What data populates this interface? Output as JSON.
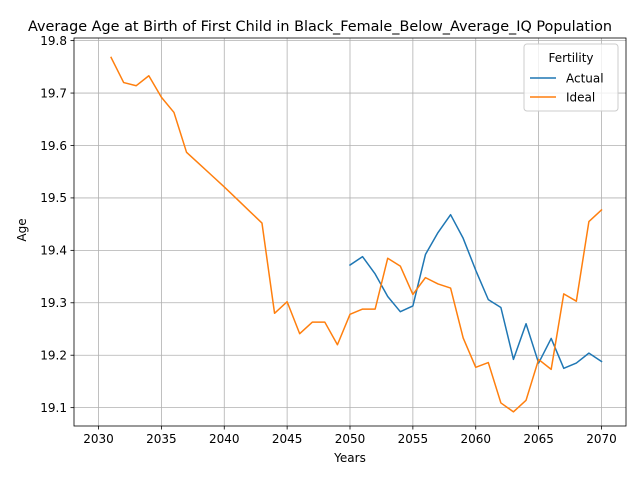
{
  "chart_data": {
    "type": "line",
    "title": "Average Age at Birth of First Child in Black_Female_Below_Average_IQ Population",
    "xlabel": "Years",
    "ylabel": "Age",
    "xlim": [
      2028.05,
      2071.95
    ],
    "ylim": [
      19.065,
      19.805
    ],
    "xticks": [
      2030,
      2035,
      2040,
      2045,
      2050,
      2055,
      2060,
      2065,
      2070
    ],
    "yticks": [
      19.1,
      19.2,
      19.3,
      19.4,
      19.5,
      19.6,
      19.7,
      19.8
    ],
    "grid": true,
    "legend": {
      "title": "Fertility",
      "position": "top-right"
    },
    "series": [
      {
        "name": "Actual",
        "color": "#1f77b4",
        "x": [
          2050,
          2051,
          2052,
          2053,
          2054,
          2055,
          2056,
          2057,
          2058,
          2059,
          2060,
          2061,
          2062,
          2063,
          2064,
          2065,
          2066,
          2067,
          2068,
          2069,
          2070
        ],
        "y": [
          19.372,
          19.388,
          19.355,
          19.312,
          19.283,
          19.294,
          19.392,
          19.434,
          19.468,
          19.423,
          19.362,
          19.306,
          19.291,
          19.192,
          19.26,
          19.185,
          19.232,
          19.175,
          19.185,
          19.204,
          19.188
        ]
      },
      {
        "name": "Ideal",
        "color": "#ff7f0e",
        "x": [
          2031,
          2032,
          2033,
          2034,
          2035,
          2036,
          2037,
          2038,
          2039,
          2040,
          2041,
          2042,
          2043,
          2044,
          2045,
          2046,
          2047,
          2048,
          2049,
          2050,
          2051,
          2052,
          2053,
          2054,
          2055,
          2056,
          2057,
          2058,
          2059,
          2060,
          2061,
          2062,
          2063,
          2064,
          2065,
          2066,
          2067,
          2068,
          2069,
          2070
        ],
        "y": [
          19.768,
          19.72,
          19.714,
          19.733,
          19.692,
          19.663,
          19.587,
          19.565,
          19.543,
          19.521,
          19.498,
          19.475,
          19.452,
          19.28,
          19.302,
          19.241,
          19.263,
          19.263,
          19.22,
          19.278,
          19.288,
          19.288,
          19.385,
          19.37,
          19.316,
          19.348,
          19.336,
          19.328,
          19.233,
          19.177,
          19.186,
          19.109,
          19.092,
          19.114,
          19.192,
          19.173,
          19.317,
          19.303,
          19.455,
          19.477
        ]
      }
    ]
  }
}
